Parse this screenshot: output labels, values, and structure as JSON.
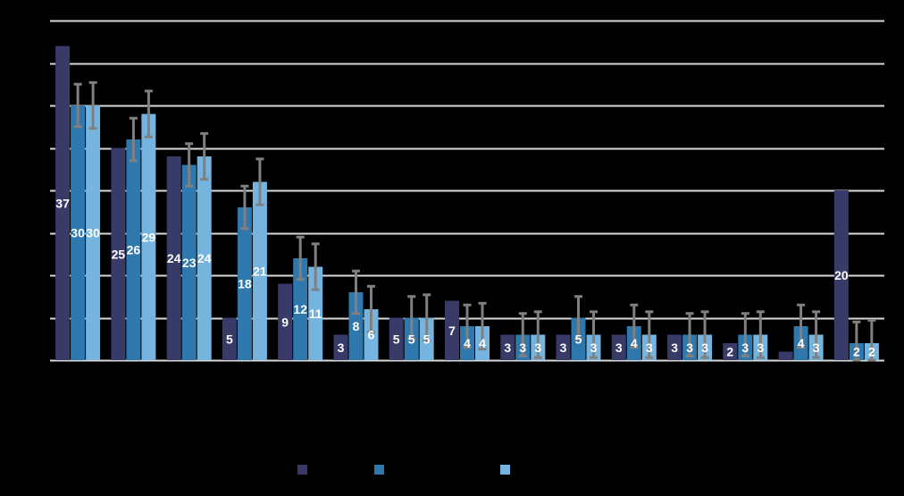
{
  "chart_data": {
    "type": "bar",
    "title": "",
    "xlabel": "",
    "ylabel": "",
    "ylim": [
      0,
      40
    ],
    "ytick_step": 5,
    "grid": true,
    "legend_position": "bottom",
    "categories": [
      "",
      "",
      "",
      "",
      "",
      "",
      "",
      "",
      "",
      "",
      "",
      "",
      "",
      "",
      ""
    ],
    "series": [
      {
        "name": "",
        "color": "#383A68",
        "values": [
          37,
          25,
          24,
          5,
          9,
          3,
          5,
          7,
          3,
          3,
          3,
          3,
          2,
          1,
          20
        ],
        "labels": [
          "37",
          "25",
          "24",
          "5",
          "9",
          "3",
          "5",
          "7",
          "3",
          "3",
          "3",
          "3",
          "2",
          "",
          "20"
        ],
        "errors": null
      },
      {
        "name": "",
        "color": "#2E78AD",
        "values": [
          30,
          26,
          23,
          18,
          12,
          8,
          5,
          4,
          3,
          5,
          4,
          3,
          3,
          4,
          2
        ],
        "labels": [
          "30",
          "26",
          "23",
          "18",
          "12",
          "8",
          "5",
          "4",
          "3",
          "5",
          "4",
          "3",
          "3",
          "4",
          "2"
        ],
        "errors": [
          2.5,
          2.5,
          2.5,
          2.5,
          2.5,
          2.5,
          2.5,
          2.5,
          2.5,
          2.5,
          2.5,
          2.5,
          2.5,
          2.5,
          2.5
        ]
      },
      {
        "name": "",
        "color": "#74B4DE",
        "values": [
          30,
          29,
          24,
          21,
          11,
          6,
          5,
          4,
          3,
          3,
          3,
          3,
          3,
          3,
          2
        ],
        "labels": [
          "30",
          "29",
          "24",
          "21",
          "11",
          "6",
          "5",
          "4",
          "3",
          "3",
          "3",
          "3",
          "3",
          "3",
          "2"
        ],
        "errors": [
          2.7,
          2.7,
          2.7,
          2.7,
          2.7,
          2.7,
          2.7,
          2.7,
          2.7,
          2.7,
          2.7,
          2.7,
          2.7,
          2.7,
          2.7
        ]
      }
    ]
  },
  "style": {
    "background": "#000000",
    "gridline_color": "#D9D9D9",
    "error_bar_color": "#808080",
    "label_color": "#FFFFFF"
  }
}
